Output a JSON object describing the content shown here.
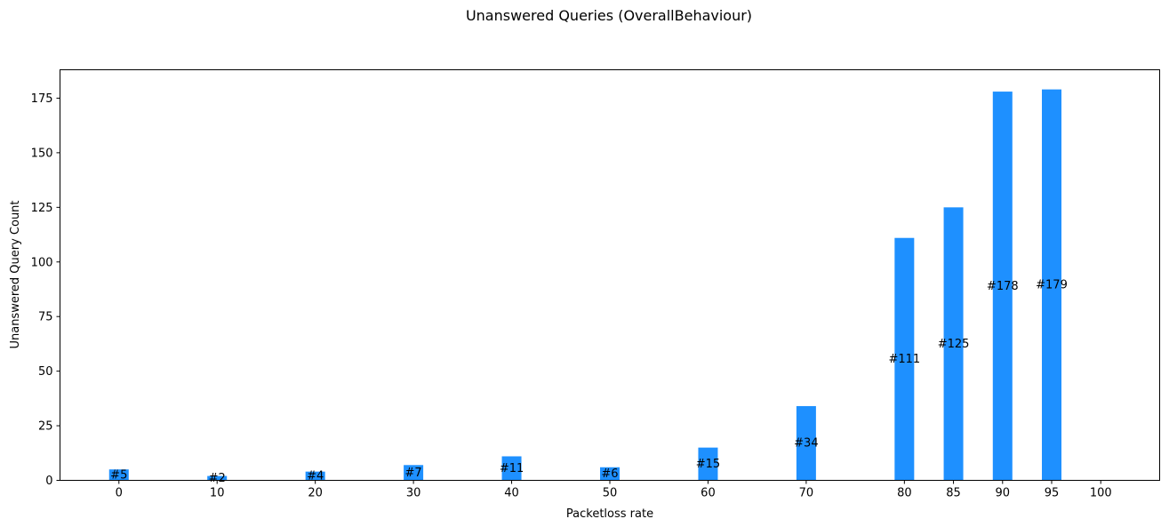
{
  "chart_data": {
    "type": "bar",
    "title": "Unanswered Queries (OverallBehaviour)",
    "xlabel": "Packetloss rate",
    "ylabel": "Unanswered Query Count",
    "x_ticks": [
      0,
      10,
      20,
      30,
      40,
      50,
      60,
      70,
      80,
      85,
      90,
      95,
      100
    ],
    "y_ticks": [
      0,
      25,
      50,
      75,
      100,
      125,
      150,
      175
    ],
    "xlim": [
      -6,
      106
    ],
    "ylim": [
      0,
      188
    ],
    "grid": false,
    "color": "#1e90ff",
    "categories": [
      "0",
      "10",
      "20",
      "30",
      "40",
      "50",
      "60",
      "70",
      "80",
      "85",
      "90",
      "95"
    ],
    "x": [
      0,
      10,
      20,
      30,
      40,
      50,
      60,
      70,
      80,
      85,
      90,
      95
    ],
    "values": [
      5,
      2,
      4,
      7,
      11,
      6,
      15,
      34,
      111,
      125,
      178,
      179
    ],
    "data_labels": [
      "#5",
      "#2",
      "#4",
      "#7",
      "#11",
      "#6",
      "#15",
      "#34",
      "#111",
      "#125",
      "#178",
      "#179"
    ]
  }
}
